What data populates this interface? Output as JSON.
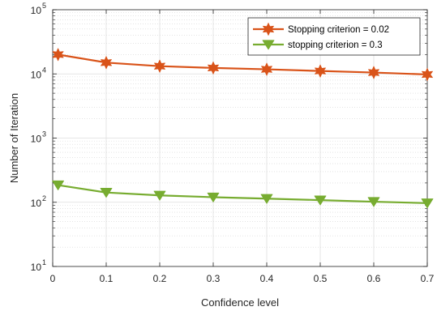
{
  "chart_data": {
    "type": "line",
    "xlabel": "Confidence level",
    "ylabel": "Number of Iteration",
    "xlim": [
      0,
      0.7
    ],
    "ylim": [
      10,
      100000
    ],
    "yscale": "log",
    "grid": true,
    "minor_grid": true,
    "legend_position": "top-right",
    "x_ticks": [
      0,
      0.1,
      0.2,
      0.3,
      0.4,
      0.5,
      0.6,
      0.7
    ],
    "x_tick_labels": [
      "0",
      "0.1",
      "0.2",
      "0.3",
      "0.4",
      "0.5",
      "0.6",
      "0.7"
    ],
    "y_ticks": [
      {
        "value": 10,
        "base": "10",
        "exp": "1"
      },
      {
        "value": 100,
        "base": "10",
        "exp": "2"
      },
      {
        "value": 1000,
        "base": "10",
        "exp": "3"
      },
      {
        "value": 10000,
        "base": "10",
        "exp": "4"
      },
      {
        "value": 100000,
        "base": "10",
        "exp": "5"
      }
    ],
    "x": [
      0.01,
      0.1,
      0.2,
      0.3,
      0.4,
      0.5,
      0.6,
      0.7
    ],
    "series": [
      {
        "name": "Stopping criterion = 0.02",
        "color": "#D95319",
        "marker": "hexagram",
        "values": [
          20000,
          15000,
          13200,
          12400,
          11800,
          11100,
          10500,
          9800
        ]
      },
      {
        "name": "stopping criterion = 0.3",
        "color": "#77AC30",
        "marker": "triangle-down",
        "values": [
          185,
          142,
          128,
          120,
          114,
          108,
          102,
          97
        ]
      }
    ]
  }
}
